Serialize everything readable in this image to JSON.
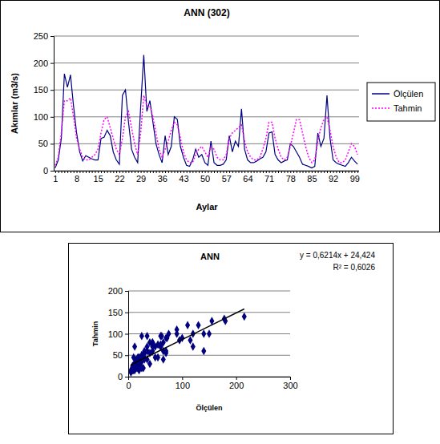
{
  "chart_data": [
    {
      "type": "line",
      "title": "ANN (302)",
      "x_label": "Aylar",
      "y_label": "Akımlar (m3/s)",
      "categories": [
        "1",
        null,
        null,
        null,
        null,
        null,
        null,
        "8",
        null,
        null,
        null,
        null,
        null,
        null,
        "15",
        null,
        null,
        null,
        null,
        null,
        null,
        "22",
        null,
        null,
        null,
        null,
        null,
        null,
        "29",
        null,
        null,
        null,
        null,
        null,
        null,
        "36",
        null,
        null,
        null,
        null,
        null,
        null,
        "43",
        null,
        null,
        null,
        null,
        null,
        null,
        "50",
        null,
        null,
        null,
        null,
        null,
        null,
        "57",
        null,
        null,
        null,
        null,
        null,
        null,
        "64",
        null,
        null,
        null,
        null,
        null,
        null,
        "71",
        null,
        null,
        null,
        null,
        null,
        null,
        "78",
        null,
        null,
        null,
        null,
        null,
        null,
        "85",
        null,
        null,
        null,
        null,
        null,
        null,
        "92",
        null,
        null,
        null,
        null,
        null,
        null,
        "99",
        null
      ],
      "series": [
        {
          "name": "Ölçülen",
          "color": "#000080",
          "line_style": "solid",
          "values": [
            5,
            20,
            60,
            180,
            155,
            178,
            120,
            70,
            35,
            18,
            28,
            25,
            22,
            20,
            20,
            60,
            62,
            75,
            65,
            35,
            20,
            12,
            140,
            150,
            90,
            40,
            25,
            15,
            120,
            215,
            110,
            130,
            90,
            50,
            30,
            15,
            65,
            30,
            45,
            100,
            95,
            45,
            25,
            10,
            8,
            20,
            40,
            25,
            30,
            15,
            10,
            55,
            15,
            10,
            10,
            12,
            20,
            65,
            35,
            55,
            45,
            115,
            40,
            20,
            15,
            15,
            18,
            22,
            25,
            35,
            70,
            72,
            30,
            20,
            15,
            18,
            20,
            50,
            45,
            35,
            25,
            12,
            10,
            8,
            5,
            8,
            70,
            45,
            60,
            140,
            60,
            20,
            15,
            12,
            10,
            8,
            15,
            25,
            18,
            12
          ]
        },
        {
          "name": "Tahmin",
          "color": "#ff00ff",
          "line_style": "dotted",
          "values": [
            10,
            25,
            70,
            130,
            130,
            135,
            100,
            60,
            40,
            25,
            20,
            20,
            25,
            30,
            40,
            70,
            95,
            100,
            80,
            60,
            40,
            30,
            60,
            100,
            110,
            80,
            50,
            30,
            70,
            140,
            120,
            120,
            100,
            70,
            40,
            25,
            40,
            55,
            75,
            90,
            85,
            60,
            35,
            20,
            15,
            15,
            30,
            40,
            45,
            35,
            25,
            45,
            40,
            25,
            20,
            20,
            30,
            60,
            70,
            75,
            80,
            85,
            55,
            35,
            25,
            20,
            20,
            25,
            40,
            60,
            90,
            90,
            60,
            40,
            25,
            20,
            25,
            45,
            70,
            95,
            95,
            70,
            45,
            25,
            15,
            20,
            55,
            80,
            95,
            100,
            75,
            45,
            25,
            15,
            15,
            20,
            35,
            50,
            45,
            30
          ]
        }
      ],
      "ylim": [
        0,
        250
      ],
      "yticks": [
        0,
        50,
        100,
        150,
        200,
        250
      ],
      "grid": true,
      "legend": "right"
    },
    {
      "type": "scatter",
      "title": "ANN",
      "x_label": "Ölçülen",
      "y_label": "Tahmin",
      "x": [
        5,
        20,
        60,
        180,
        155,
        178,
        120,
        70,
        35,
        18,
        28,
        25,
        22,
        20,
        20,
        60,
        62,
        75,
        65,
        35,
        20,
        12,
        140,
        150,
        90,
        40,
        25,
        15,
        120,
        215,
        110,
        130,
        90,
        50,
        30,
        15,
        65,
        30,
        45,
        100,
        95,
        45,
        25,
        10,
        8,
        20,
        40,
        25,
        30,
        15,
        10,
        55,
        15,
        10,
        10,
        12,
        20,
        65,
        35,
        55,
        45,
        115,
        40,
        20,
        15,
        15,
        18,
        22,
        25,
        35,
        70,
        72,
        30,
        20,
        15,
        18,
        20,
        50,
        45,
        35,
        25,
        12,
        10,
        8,
        5,
        8,
        70,
        45,
        60,
        140,
        60,
        20,
        15,
        12,
        10,
        8,
        15,
        25,
        18,
        12
      ],
      "values": [
        10,
        25,
        70,
        130,
        130,
        135,
        100,
        60,
        40,
        25,
        20,
        20,
        25,
        30,
        40,
        70,
        95,
        100,
        80,
        60,
        40,
        30,
        60,
        100,
        110,
        80,
        50,
        30,
        70,
        140,
        120,
        120,
        100,
        70,
        40,
        25,
        40,
        55,
        75,
        90,
        85,
        60,
        35,
        20,
        15,
        15,
        30,
        40,
        45,
        35,
        25,
        45,
        40,
        25,
        20,
        20,
        30,
        60,
        70,
        75,
        80,
        85,
        55,
        35,
        25,
        20,
        20,
        25,
        40,
        60,
        90,
        90,
        60,
        40,
        25,
        20,
        25,
        45,
        70,
        95,
        95,
        70,
        45,
        25,
        15,
        20,
        55,
        80,
        95,
        100,
        75,
        45,
        25,
        15,
        15,
        20,
        35,
        50,
        45,
        30
      ],
      "color": "#000080",
      "marker": "diamond",
      "xlim": [
        0,
        300
      ],
      "xticks": [
        0,
        100,
        200,
        300
      ],
      "ylim": [
        0,
        200
      ],
      "yticks": [
        0,
        50,
        100,
        150,
        200
      ],
      "grid": true,
      "trendline": {
        "slope": 0.6214,
        "intercept": 24.424
      },
      "annotations": [
        "y = 0,6214x + 24,424",
        "R² = 0,6026"
      ]
    }
  ]
}
